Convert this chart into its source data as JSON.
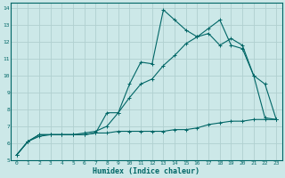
{
  "background_color": "#cce8e8",
  "grid_color": "#b0d0d0",
  "line_color": "#006666",
  "xlabel": "Humidex (Indice chaleur)",
  "xlim": [
    -0.5,
    23.5
  ],
  "ylim": [
    5,
    14.3
  ],
  "xticks": [
    0,
    1,
    2,
    3,
    4,
    5,
    6,
    7,
    8,
    9,
    10,
    11,
    12,
    13,
    14,
    15,
    16,
    17,
    18,
    19,
    20,
    21,
    22,
    23
  ],
  "yticks": [
    5,
    6,
    7,
    8,
    9,
    10,
    11,
    12,
    13,
    14
  ],
  "line1_x": [
    0,
    1,
    2,
    3,
    4,
    5,
    6,
    7,
    8,
    9,
    10,
    11,
    12,
    13,
    14,
    15,
    16,
    17,
    18,
    19,
    20,
    21,
    22,
    23
  ],
  "line1_y": [
    5.3,
    6.1,
    6.4,
    6.5,
    6.5,
    6.5,
    6.5,
    6.6,
    7.8,
    7.8,
    9.5,
    10.8,
    10.7,
    13.9,
    13.3,
    12.7,
    12.3,
    12.5,
    11.8,
    12.2,
    11.8,
    10.0,
    9.5,
    7.4
  ],
  "line2_x": [
    0,
    1,
    2,
    3,
    4,
    5,
    6,
    7,
    8,
    9,
    10,
    11,
    12,
    13,
    14,
    15,
    16,
    17,
    18,
    19,
    20,
    21,
    22,
    23
  ],
  "line2_y": [
    5.3,
    6.1,
    6.5,
    6.5,
    6.5,
    6.5,
    6.6,
    6.7,
    7.0,
    7.8,
    8.7,
    9.5,
    9.8,
    10.6,
    11.2,
    11.9,
    12.3,
    12.8,
    13.3,
    11.8,
    11.6,
    10.0,
    7.5,
    7.4
  ],
  "line3_x": [
    0,
    1,
    2,
    3,
    4,
    5,
    6,
    7,
    8,
    9,
    10,
    11,
    12,
    13,
    14,
    15,
    16,
    17,
    18,
    19,
    20,
    21,
    22,
    23
  ],
  "line3_y": [
    5.3,
    6.1,
    6.5,
    6.5,
    6.5,
    6.5,
    6.5,
    6.6,
    6.6,
    6.7,
    6.7,
    6.7,
    6.7,
    6.7,
    6.8,
    6.8,
    6.9,
    7.1,
    7.2,
    7.3,
    7.3,
    7.4,
    7.4,
    7.4
  ]
}
